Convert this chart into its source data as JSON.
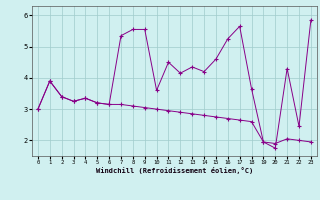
{
  "xlabel": "Windchill (Refroidissement éolien,°C)",
  "line1_x": [
    0,
    1,
    2,
    3,
    4,
    5,
    6,
    7,
    8,
    9,
    10,
    11,
    12,
    13,
    14,
    15,
    16,
    17,
    18,
    19,
    20,
    21,
    22,
    23
  ],
  "line1_y": [
    3.0,
    3.9,
    3.4,
    3.25,
    3.35,
    3.2,
    3.15,
    5.35,
    5.55,
    5.55,
    3.6,
    4.5,
    4.15,
    4.35,
    4.2,
    4.6,
    5.25,
    5.65,
    3.65,
    1.95,
    1.75,
    4.3,
    2.45,
    5.85
  ],
  "line2_x": [
    0,
    1,
    2,
    3,
    4,
    5,
    6,
    7,
    8,
    9,
    10,
    11,
    12,
    13,
    14,
    15,
    16,
    17,
    18,
    19,
    20,
    21,
    22,
    23
  ],
  "line2_y": [
    3.0,
    3.9,
    3.4,
    3.25,
    3.35,
    3.2,
    3.15,
    3.15,
    3.1,
    3.05,
    3.0,
    2.95,
    2.9,
    2.85,
    2.8,
    2.75,
    2.7,
    2.65,
    2.6,
    1.95,
    1.9,
    2.05,
    2.0,
    1.95
  ],
  "line_color": "#880088",
  "bg_color": "#d0f0f0",
  "grid_color": "#a0cccc",
  "ylim": [
    1.5,
    6.3
  ],
  "xlim": [
    -0.5,
    23.5
  ],
  "yticks": [
    2,
    3,
    4,
    5,
    6
  ],
  "xticks": [
    0,
    1,
    2,
    3,
    4,
    5,
    6,
    7,
    8,
    9,
    10,
    11,
    12,
    13,
    14,
    15,
    16,
    17,
    18,
    19,
    20,
    21,
    22,
    23
  ]
}
